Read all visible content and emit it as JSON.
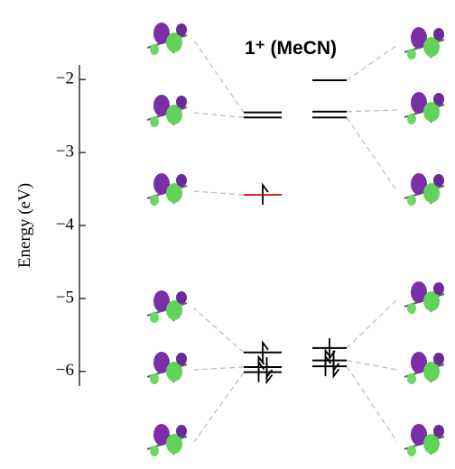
{
  "chart_data": {
    "type": "energy-levels",
    "title": "1⁺ (MeCN)",
    "y_label": "Energy (eV)",
    "ylim": [
      -6.2,
      -1.8
    ],
    "yticks": [
      {
        "value": -2,
        "label": "−2"
      },
      {
        "value": -3,
        "label": "−3"
      },
      {
        "value": -4,
        "label": "−4"
      },
      {
        "value": -5,
        "label": "−5"
      },
      {
        "value": -6,
        "label": "−6"
      }
    ],
    "columns": [
      {
        "values": [
          -2.45,
          -2.52,
          -3.58,
          -5.74,
          -5.94,
          -6.01
        ],
        "colors": [
          "#000000",
          "#000000",
          "#d42a1e",
          "#000000",
          "#000000",
          "#000000"
        ],
        "electrons": [
          [],
          [],
          [
            "up"
          ],
          [
            "up"
          ],
          [
            "up",
            "down"
          ],
          [
            "up",
            "down"
          ]
        ]
      },
      {
        "values": [
          -2.01,
          -2.44,
          -2.52,
          -5.68,
          -5.85,
          -5.93
        ],
        "colors": [
          "#000000",
          "#000000",
          "#000000",
          "#000000",
          "#000000",
          "#000000"
        ],
        "electrons": [
          [],
          [],
          [],
          [
            "down"
          ],
          [
            "up",
            "down"
          ],
          [
            "up",
            "down"
          ]
        ]
      }
    ]
  }
}
